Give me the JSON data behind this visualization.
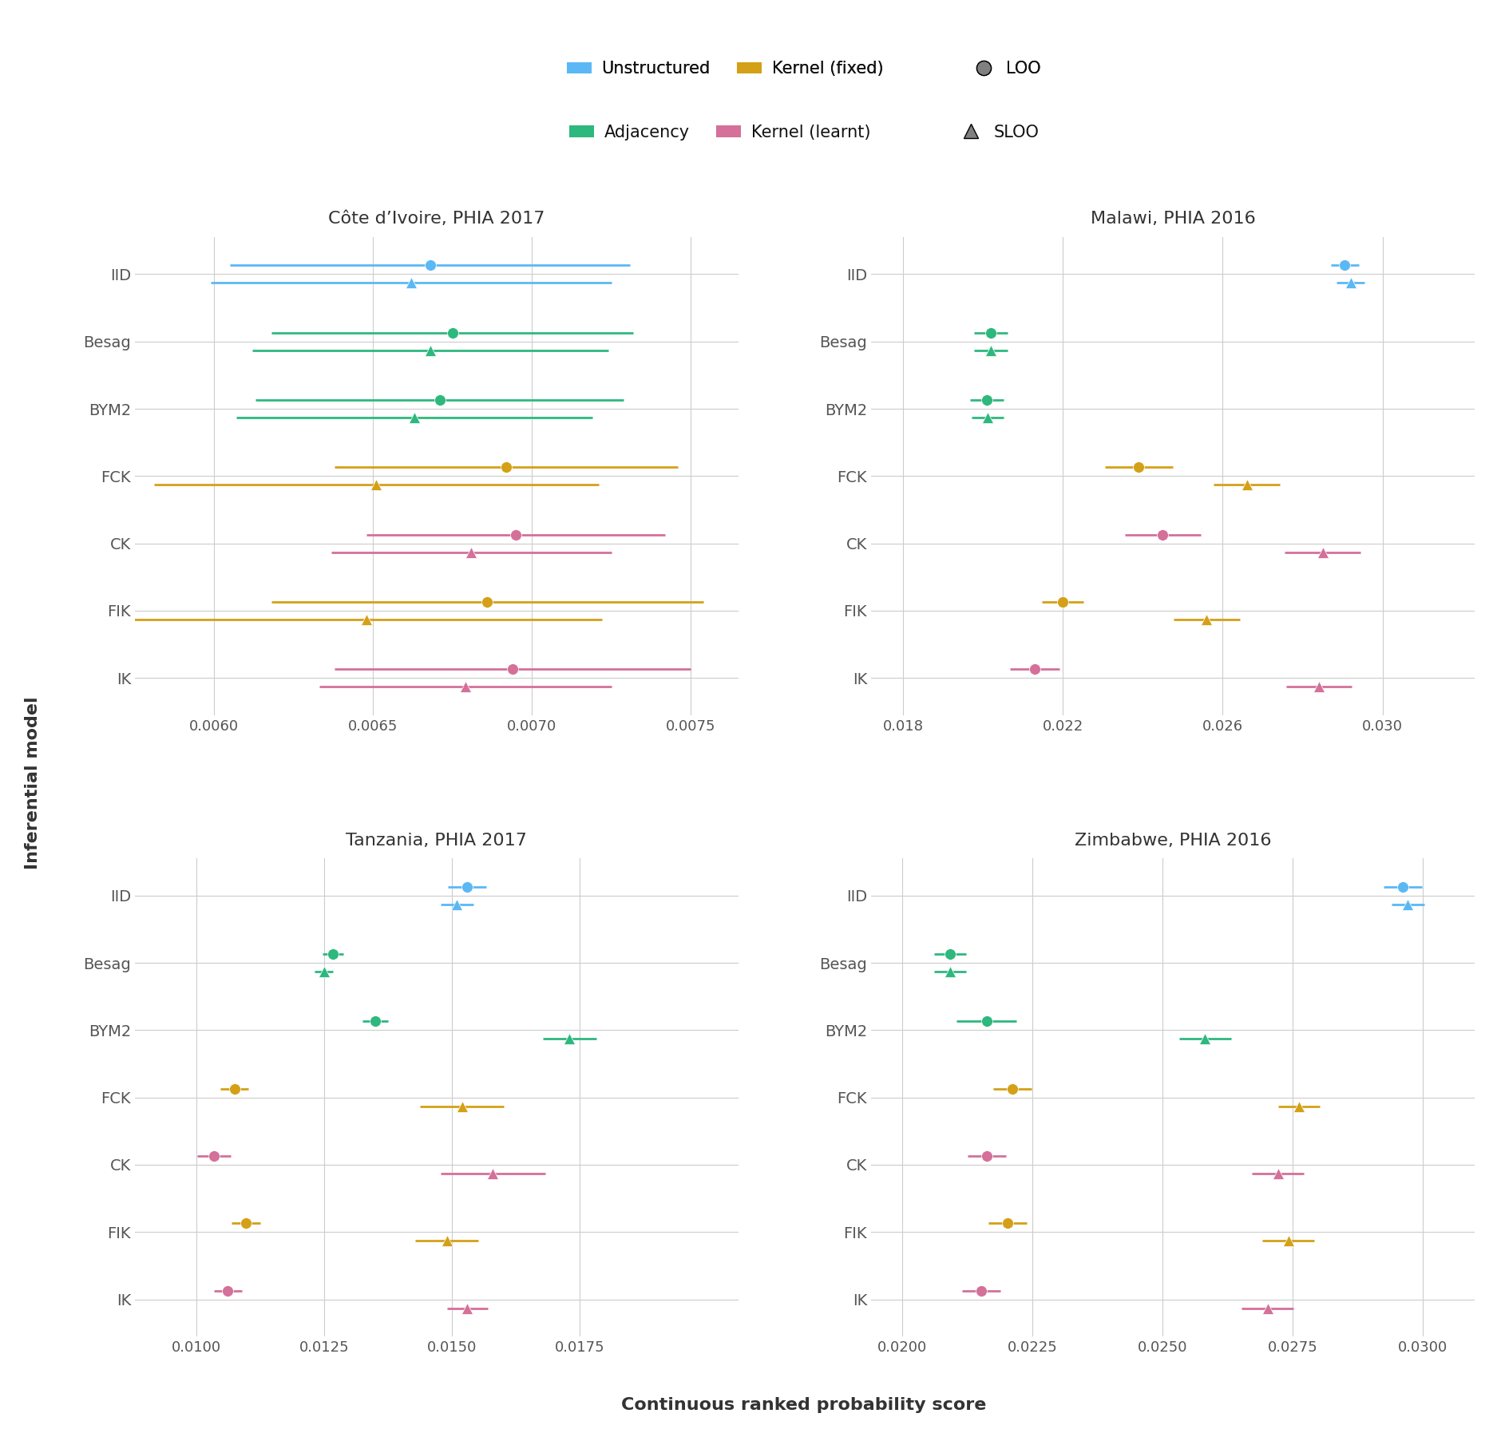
{
  "colors": {
    "unstructured": "#5BB8F5",
    "adjacency": "#2EB87E",
    "kernel_fixed": "#D4A017",
    "kernel_learnt": "#D4709A"
  },
  "panels": [
    {
      "title": "Côte d’Ivoire, PHIA 2017",
      "xlim": [
        0.00575,
        0.00765
      ],
      "xticks": [
        0.006,
        0.0065,
        0.007,
        0.0075
      ],
      "xticklabels": [
        "0.0060",
        "0.0065",
        "0.0070",
        "0.0075"
      ],
      "LOO": {
        "mean": [
          0.00668,
          0.00675,
          0.00671,
          0.00692,
          0.00695,
          0.00686,
          0.00694
        ],
        "lo": [
          0.00605,
          0.00618,
          0.00613,
          0.00638,
          0.00648,
          0.00618,
          0.00638
        ],
        "hi": [
          0.00731,
          0.00732,
          0.00729,
          0.00746,
          0.00742,
          0.00754,
          0.0075
        ],
        "color": [
          "unstructured",
          "adjacency",
          "adjacency",
          "kernel_fixed",
          "kernel_learnt",
          "kernel_fixed",
          "kernel_learnt"
        ]
      },
      "SLOO": {
        "mean": [
          0.00662,
          0.00668,
          0.00663,
          0.00651,
          0.00681,
          0.00648,
          0.00679
        ],
        "lo": [
          0.00599,
          0.00612,
          0.00607,
          0.00581,
          0.00637,
          0.00574,
          0.00633
        ],
        "hi": [
          0.00725,
          0.00724,
          0.00719,
          0.00721,
          0.00725,
          0.00722,
          0.00725
        ],
        "color": [
          "unstructured",
          "adjacency",
          "adjacency",
          "kernel_fixed",
          "kernel_learnt",
          "kernel_fixed",
          "kernel_learnt"
        ]
      }
    },
    {
      "title": "Malawi, PHIA 2016",
      "xlim": [
        0.0172,
        0.0323
      ],
      "xticks": [
        0.018,
        0.022,
        0.026,
        0.03
      ],
      "xticklabels": [
        "0.018",
        "0.022",
        "0.026",
        "0.030"
      ],
      "LOO": {
        "mean": [
          0.02905,
          0.0202,
          0.0201,
          0.0239,
          0.0245,
          0.022,
          0.0213
        ],
        "lo": [
          0.0287,
          0.01978,
          0.01968,
          0.02305,
          0.02355,
          0.02148,
          0.02068
        ],
        "hi": [
          0.0294,
          0.02062,
          0.02052,
          0.02475,
          0.02545,
          0.02252,
          0.02192
        ],
        "color": [
          "unstructured",
          "adjacency",
          "adjacency",
          "kernel_fixed",
          "kernel_learnt",
          "kernel_fixed",
          "kernel_learnt"
        ]
      },
      "SLOO": {
        "mean": [
          0.0292,
          0.0202,
          0.02012,
          0.0266,
          0.0285,
          0.0256,
          0.0284
        ],
        "lo": [
          0.02885,
          0.01978,
          0.01972,
          0.02578,
          0.02755,
          0.02478,
          0.02758
        ],
        "hi": [
          0.02955,
          0.02062,
          0.02052,
          0.02742,
          0.02945,
          0.02642,
          0.02922
        ],
        "color": [
          "unstructured",
          "adjacency",
          "adjacency",
          "kernel_fixed",
          "kernel_learnt",
          "kernel_fixed",
          "kernel_learnt"
        ]
      }
    },
    {
      "title": "Tanzania, PHIA 2017",
      "xlim": [
        0.0088,
        0.0206
      ],
      "xticks": [
        0.01,
        0.0125,
        0.015,
        0.0175
      ],
      "xticklabels": [
        "0.0100",
        "0.0125",
        "0.0150",
        "0.0175"
      ],
      "LOO": {
        "mean": [
          0.0153,
          0.01268,
          0.0135,
          0.01075,
          0.01035,
          0.01098,
          0.01062
        ],
        "lo": [
          0.01492,
          0.01248,
          0.01325,
          0.01048,
          0.01002,
          0.0107,
          0.01035
        ],
        "hi": [
          0.01568,
          0.01288,
          0.01375,
          0.01102,
          0.01068,
          0.01126,
          0.01089
        ],
        "color": [
          "unstructured",
          "adjacency",
          "adjacency",
          "kernel_fixed",
          "kernel_learnt",
          "kernel_fixed",
          "kernel_learnt"
        ]
      },
      "SLOO": {
        "mean": [
          0.0151,
          0.0125,
          0.0173,
          0.0152,
          0.0158,
          0.0149,
          0.0153
        ],
        "lo": [
          0.01478,
          0.01232,
          0.01678,
          0.01438,
          0.01478,
          0.01428,
          0.0149
        ],
        "hi": [
          0.01542,
          0.01268,
          0.01782,
          0.01602,
          0.01682,
          0.01552,
          0.0157
        ],
        "color": [
          "unstructured",
          "adjacency",
          "adjacency",
          "kernel_fixed",
          "kernel_learnt",
          "kernel_fixed",
          "kernel_learnt"
        ]
      }
    },
    {
      "title": "Zimbabwe, PHIA 2016",
      "xlim": [
        0.0194,
        0.031
      ],
      "xticks": [
        0.02,
        0.0225,
        0.025,
        0.0275,
        0.03
      ],
      "xticklabels": [
        "0.0200",
        "0.0225",
        "0.0250",
        "0.0275",
        "0.0300"
      ],
      "LOO": {
        "mean": [
          0.02962,
          0.02092,
          0.02162,
          0.02212,
          0.02162,
          0.02202,
          0.02152
        ],
        "lo": [
          0.02925,
          0.02062,
          0.02105,
          0.02175,
          0.02125,
          0.02165,
          0.02115
        ],
        "hi": [
          0.02999,
          0.02122,
          0.02219,
          0.02249,
          0.02199,
          0.02239,
          0.02189
        ],
        "color": [
          "unstructured",
          "adjacency",
          "adjacency",
          "kernel_fixed",
          "kernel_learnt",
          "kernel_fixed",
          "kernel_learnt"
        ]
      },
      "SLOO": {
        "mean": [
          0.02972,
          0.02092,
          0.02582,
          0.02762,
          0.02722,
          0.02742,
          0.02702
        ],
        "lo": [
          0.0294,
          0.02062,
          0.02532,
          0.02722,
          0.02672,
          0.02692,
          0.02652
        ],
        "hi": [
          0.03004,
          0.02122,
          0.02632,
          0.02802,
          0.02772,
          0.02792,
          0.02752
        ],
        "color": [
          "unstructured",
          "adjacency",
          "adjacency",
          "kernel_fixed",
          "kernel_learnt",
          "kernel_fixed",
          "kernel_learnt"
        ]
      }
    }
  ],
  "models": [
    "IID",
    "Besag",
    "BYM2",
    "FCK",
    "CK",
    "FIK",
    "IK"
  ],
  "ylabel": "Inferential model",
  "xlabel": "Continuous ranked probability score",
  "background_color": "#ffffff",
  "grid_color": "#cccccc"
}
